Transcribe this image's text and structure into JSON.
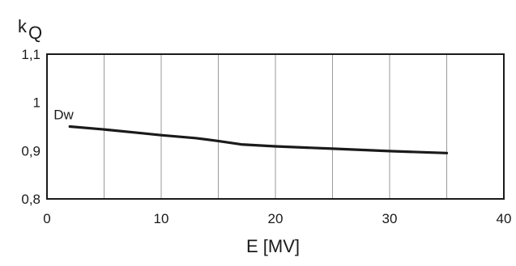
{
  "chart_data": {
    "type": "line",
    "title": "",
    "ylabel": "kQ",
    "ylabel_main": "k",
    "ylabel_sub": "Q",
    "xlabel": "E [MV]",
    "xlim": [
      0,
      40
    ],
    "ylim": [
      0.8,
      1.1
    ],
    "x_ticks": [
      0,
      10,
      20,
      30,
      40
    ],
    "x_tick_labels": [
      "0",
      "10",
      "20",
      "30",
      "40"
    ],
    "y_ticks": [
      0.8,
      0.9,
      1.0,
      1.1
    ],
    "y_tick_labels": [
      "0,8",
      "0,9",
      "1",
      "1,1"
    ],
    "grid": {
      "vertical": true,
      "vertical_step": 5,
      "horizontal": false
    },
    "series": [
      {
        "name": "Dw",
        "color": "#1a1a1a",
        "x": [
          2,
          5,
          8,
          10,
          13,
          15,
          17,
          20,
          25,
          30,
          35
        ],
        "y": [
          0.95,
          0.944,
          0.937,
          0.932,
          0.926,
          0.92,
          0.913,
          0.909,
          0.904,
          0.899,
          0.895
        ]
      }
    ]
  }
}
